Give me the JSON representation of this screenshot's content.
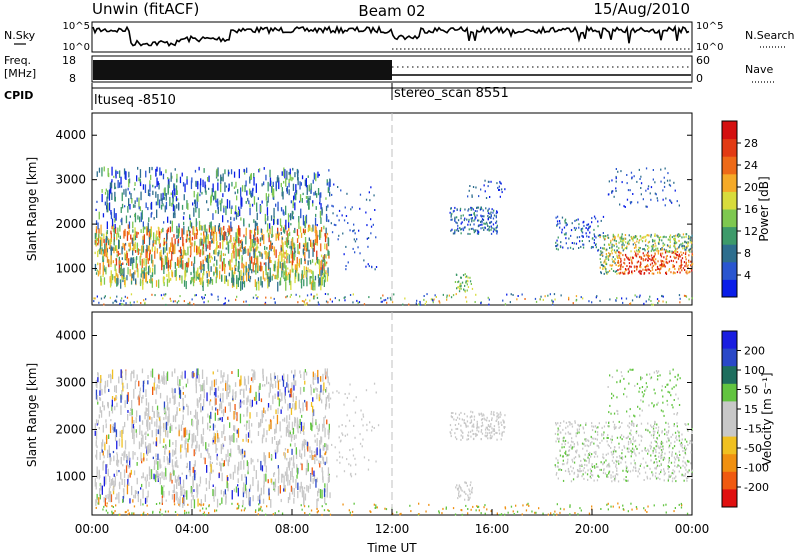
{
  "header": {
    "left": "Unwin (fitACF)",
    "center": "Beam 02",
    "right": "15/Aug/2010"
  },
  "side_labels": {
    "nsky": "N.Sky",
    "freq_line1": "Freq.",
    "freq_line2": "[MHz]",
    "cpid": "CPID",
    "nsearch": "N.Search",
    "nave": "Nave"
  },
  "chart_data": [
    {
      "type": "line",
      "title": "",
      "left_axis": {
        "label": "N.Sky",
        "ticks": [
          "10^5",
          "10^0"
        ]
      },
      "right_axis": {
        "label": "N.Search",
        "ticks": [
          "10^5",
          "10^0"
        ]
      },
      "x": [
        "00:00",
        "04:00",
        "08:00",
        "12:00",
        "16:00",
        "20:00",
        "00:00"
      ],
      "series": [
        {
          "name": "N.Sky",
          "description": "high noise ~10^4-10^5 with a drop near 01:30-05:30, then erratic"
        },
        {
          "name": "N.Search",
          "description": "dotted trace"
        }
      ]
    },
    {
      "type": "line",
      "left_axis": {
        "label": "Freq. [MHz]",
        "ticks": [
          18,
          8
        ],
        "ylim": [
          8,
          18
        ]
      },
      "right_axis": {
        "label": "Nave",
        "ticks": [
          60,
          0
        ],
        "ylim": [
          0,
          60
        ]
      },
      "segments": [
        {
          "from": "00:00",
          "to": "12:00",
          "pattern": "rapid alternation between 8 and 18 MHz (stereo sounding)"
        },
        {
          "from": "12:00",
          "to": "00:00",
          "freq_level": 12,
          "nave_level": 20
        }
      ]
    },
    {
      "type": "table",
      "name": "CPID",
      "entries": [
        {
          "start": "00:00",
          "label": "ltuseq -8510"
        },
        {
          "start": "12:00",
          "label": "stereo_scan 8551"
        }
      ]
    },
    {
      "type": "heatmap",
      "name": "Power",
      "ylabel": "Slant Range [km]",
      "yticks": [
        1000,
        2000,
        3000,
        4000
      ],
      "ylim": [
        180,
        4500
      ],
      "xticks": [
        "00:00",
        "04:00",
        "08:00",
        "12:00",
        "16:00",
        "20:00",
        "00:00"
      ],
      "xlim_hours": [
        0,
        24
      ],
      "colorbar": {
        "label": "Power [dB]",
        "ticks": [
          4,
          8,
          12,
          16,
          20,
          24,
          28
        ],
        "colors": [
          "#0a1ee8",
          "#2a56d0",
          "#2e6e8e",
          "#3d9a6a",
          "#7ec850",
          "#d8dc3c",
          "#f5aa28",
          "#ee6a18",
          "#e23a14",
          "#d41010"
        ]
      }
    },
    {
      "type": "heatmap",
      "name": "Velocity",
      "ylabel": "Slant Range [km]",
      "xlabel": "Time UT",
      "yticks": [
        1000,
        2000,
        3000,
        4000
      ],
      "ylim": [
        180,
        4500
      ],
      "xticks": [
        "00:00",
        "04:00",
        "08:00",
        "12:00",
        "16:00",
        "20:00",
        "00:00"
      ],
      "xlim_hours": [
        0,
        24
      ],
      "colorbar": {
        "label": "Velocity [m s^-1]",
        "ticks": [
          200,
          100,
          50,
          15,
          -15,
          -50,
          -100,
          -200
        ],
        "colors": [
          "#1a1ee0",
          "#2a48c8",
          "#1e6e5e",
          "#62c440",
          "#c8c8c8",
          "#c8c8c8",
          "#f0c020",
          "#f09010",
          "#f05a10",
          "#e01010"
        ]
      }
    }
  ]
}
